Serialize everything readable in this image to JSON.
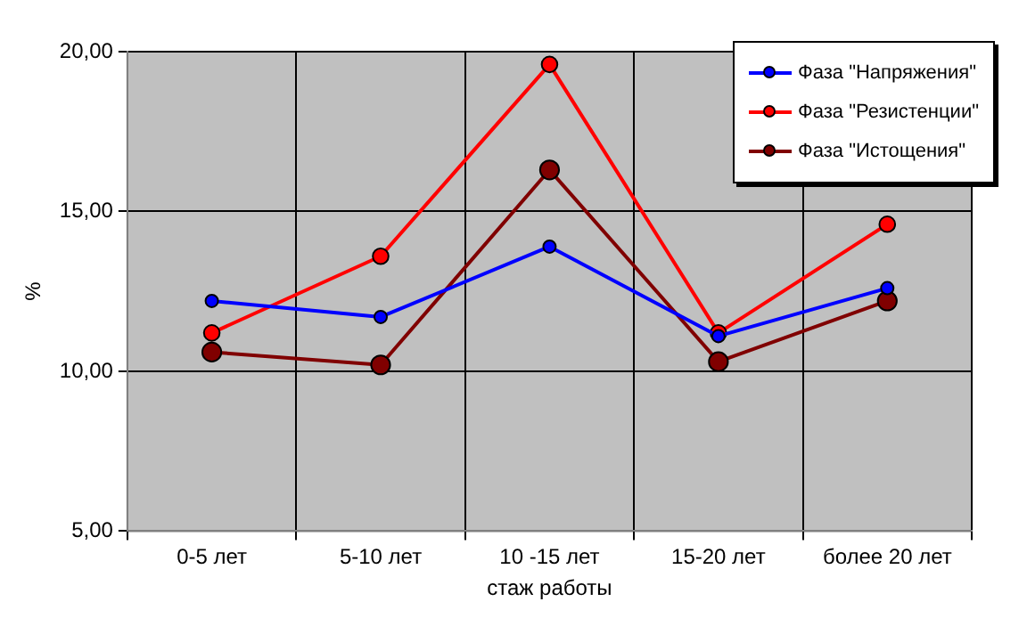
{
  "chart_data": {
    "type": "line",
    "xlabel": "стаж работы",
    "ylabel": "%",
    "categories": [
      "0-5 лет",
      "5-10 лет",
      "10 -15 лет",
      "15-20 лет",
      "более 20 лет"
    ],
    "series": [
      {
        "name": "Фаза \"Напряжения\"",
        "color": "#0000ff",
        "values": [
          12.2,
          11.7,
          13.9,
          11.1,
          12.6
        ]
      },
      {
        "name": "Фаза \"Резистенции\"",
        "color": "#ff0000",
        "values": [
          11.2,
          13.6,
          19.6,
          11.2,
          14.6
        ]
      },
      {
        "name": "Фаза \"Истощения\"",
        "color": "#800000",
        "values": [
          10.6,
          10.2,
          16.3,
          10.3,
          12.2
        ]
      }
    ],
    "ylim": [
      5,
      20
    ],
    "yticks": [
      {
        "value": 5,
        "label": "5,00"
      },
      {
        "value": 10,
        "label": "10,00"
      },
      {
        "value": 15,
        "label": "15,00"
      },
      {
        "value": 20,
        "label": "20,00"
      }
    ],
    "grid": true,
    "legend": "top right",
    "marker": "circle",
    "line_style": "solid"
  }
}
